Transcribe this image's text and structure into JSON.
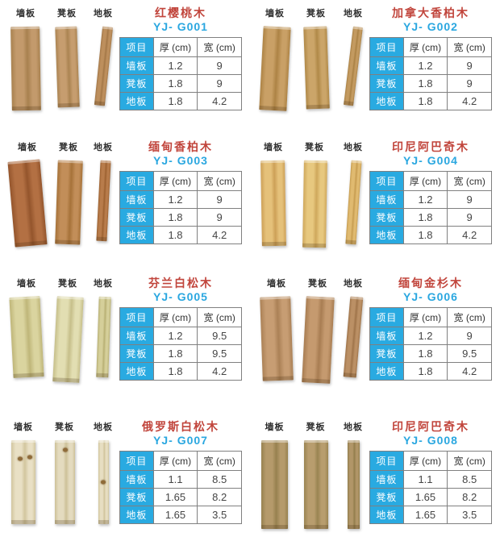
{
  "colors": {
    "background": "#ffffff",
    "name_red": "#c1453c",
    "model_blue": "#2aa7e0",
    "cell_blue": "#29aae1",
    "table_border": "#808080",
    "value_text": "#454545",
    "header_text": "#333333",
    "label_text": "#2f2f2f"
  },
  "plank_labels": [
    "墙板",
    "凳板",
    "地板"
  ],
  "table_header": [
    "项目",
    "厚 (cm)",
    "宽 (cm)"
  ],
  "products": [
    {
      "name": "红樱桃木",
      "model": "YJ- G001",
      "rows": [
        [
          "墙板",
          "1.2",
          "9"
        ],
        [
          "凳板",
          "1.8",
          "9"
        ],
        [
          "地板",
          "1.8",
          "4.2"
        ]
      ],
      "planks": [
        {
          "w": 36,
          "h": 104,
          "rot": -1,
          "c1": "#c39a6c",
          "c2": "#a8814f"
        },
        {
          "w": 27,
          "h": 100,
          "rot": -2,
          "c1": "#c69d6f",
          "c2": "#ab8452"
        },
        {
          "w": 13,
          "h": 98,
          "rot": 6,
          "c1": "#bd8f5d",
          "c2": "#a37747"
        }
      ]
    },
    {
      "name": "加拿大香柏木",
      "model": "YJ- G002",
      "rows": [
        [
          "墙板",
          "1.2",
          "9"
        ],
        [
          "凳板",
          "1.8",
          "9"
        ],
        [
          "地板",
          "1.8",
          "4.2"
        ]
      ],
      "planks": [
        {
          "w": 34,
          "h": 104,
          "rot": 3,
          "c1": "#c9a066",
          "c2": "#ad8345"
        },
        {
          "w": 29,
          "h": 102,
          "rot": -2,
          "c1": "#cba569",
          "c2": "#b08948"
        },
        {
          "w": 12,
          "h": 98,
          "rot": 7,
          "c1": "#c39a60",
          "c2": "#a98043"
        }
      ]
    },
    {
      "name": "缅甸香柏木",
      "model": "YJ- G003",
      "rows": [
        [
          "墙板",
          "1.2",
          "9"
        ],
        [
          "凳板",
          "1.8",
          "9"
        ],
        [
          "地板",
          "1.8",
          "4.2"
        ]
      ],
      "planks": [
        {
          "w": 40,
          "h": 106,
          "rot": -5,
          "c1": "#b37043",
          "c2": "#94552c"
        },
        {
          "w": 31,
          "h": 104,
          "rot": 2,
          "c1": "#c28e59",
          "c2": "#a67239"
        },
        {
          "w": 13,
          "h": 100,
          "rot": 3,
          "c1": "#b87c4b",
          "c2": "#9c6130"
        }
      ]
    },
    {
      "name": "印尼阿巴奇木",
      "model": "YJ- G004",
      "rows": [
        [
          "墙板",
          "1.2",
          "9"
        ],
        [
          "凳板",
          "1.8",
          "9"
        ],
        [
          "地板",
          "1.8",
          "4.2"
        ]
      ],
      "planks": [
        {
          "w": 30,
          "h": 106,
          "rot": -1,
          "c1": "#e5c17a",
          "c2": "#cda057"
        },
        {
          "w": 29,
          "h": 108,
          "rot": 1,
          "c1": "#e7c87f",
          "c2": "#cfa85c"
        },
        {
          "w": 13,
          "h": 104,
          "rot": 4,
          "c1": "#e0ba70",
          "c2": "#c69c50"
        }
      ]
    },
    {
      "name": "芬兰白松木",
      "model": "YJ- G005",
      "rows": [
        [
          "墙板",
          "1.2",
          "9.5"
        ],
        [
          "凳板",
          "1.8",
          "9.5"
        ],
        [
          "地板",
          "1.8",
          "4.2"
        ]
      ],
      "planks": [
        {
          "w": 38,
          "h": 100,
          "rot": -3,
          "c1": "#dad49f",
          "c2": "#bfb679"
        },
        {
          "w": 33,
          "h": 106,
          "rot": 3,
          "c1": "#e2deb2",
          "c2": "#c6bf8a"
        },
        {
          "w": 15,
          "h": 100,
          "rot": 2,
          "c1": "#d5cf9a",
          "c2": "#b8b074"
        }
      ]
    },
    {
      "name": "缅甸金杉木",
      "model": "YJ- G006",
      "rows": [
        [
          "墙板",
          "1.2",
          "9"
        ],
        [
          "凳板",
          "1.8",
          "9.5"
        ],
        [
          "地板",
          "1.8",
          "4.2"
        ]
      ],
      "planks": [
        {
          "w": 38,
          "h": 104,
          "rot": -2,
          "c1": "#c79d73",
          "c2": "#ab8156"
        },
        {
          "w": 35,
          "h": 107,
          "rot": 3,
          "c1": "#c59a6f",
          "c2": "#a87d52"
        },
        {
          "w": 16,
          "h": 100,
          "rot": 5,
          "c1": "#bb9065",
          "c2": "#9f744a"
        }
      ]
    },
    {
      "name": "俄罗斯白松木",
      "model": "YJ- G007",
      "rows": [
        [
          "墙板",
          "1.1",
          "8.5"
        ],
        [
          "凳板",
          "1.65",
          "8.2"
        ],
        [
          "地板",
          "1.65",
          "3.5"
        ]
      ],
      "planks": [
        {
          "w": 30,
          "h": 104,
          "rot": 0,
          "c1": "#e9e0c5",
          "c2": "#d2c69e",
          "knots": [
            [
              0.35,
              0.22
            ],
            [
              0.78,
              0.2
            ]
          ]
        },
        {
          "w": 25,
          "h": 104,
          "rot": 0,
          "c1": "#e4dbbf",
          "c2": "#cdc198",
          "knots": [
            [
              0.55,
              0.12
            ]
          ]
        },
        {
          "w": 13,
          "h": 104,
          "rot": 0,
          "c1": "#e7dec2",
          "c2": "#d0c49b",
          "knots": [
            [
              0.5,
              0.5
            ]
          ]
        }
      ]
    },
    {
      "name": "印尼阿巴奇木",
      "model": "YJ- G008",
      "rows": [
        [
          "墙板",
          "1.1",
          "8.5"
        ],
        [
          "凳板",
          "1.65",
          "8.2"
        ],
        [
          "地板",
          "1.65",
          "3.5"
        ]
      ],
      "planks": [
        {
          "w": 33,
          "h": 110,
          "rot": 0,
          "c1": "#b59a6b",
          "c2": "#97814f"
        },
        {
          "w": 30,
          "h": 110,
          "rot": 0,
          "c1": "#b89d6e",
          "c2": "#9a8452"
        },
        {
          "w": 15,
          "h": 110,
          "rot": 0,
          "c1": "#b19668",
          "c2": "#937d4c"
        }
      ]
    }
  ]
}
